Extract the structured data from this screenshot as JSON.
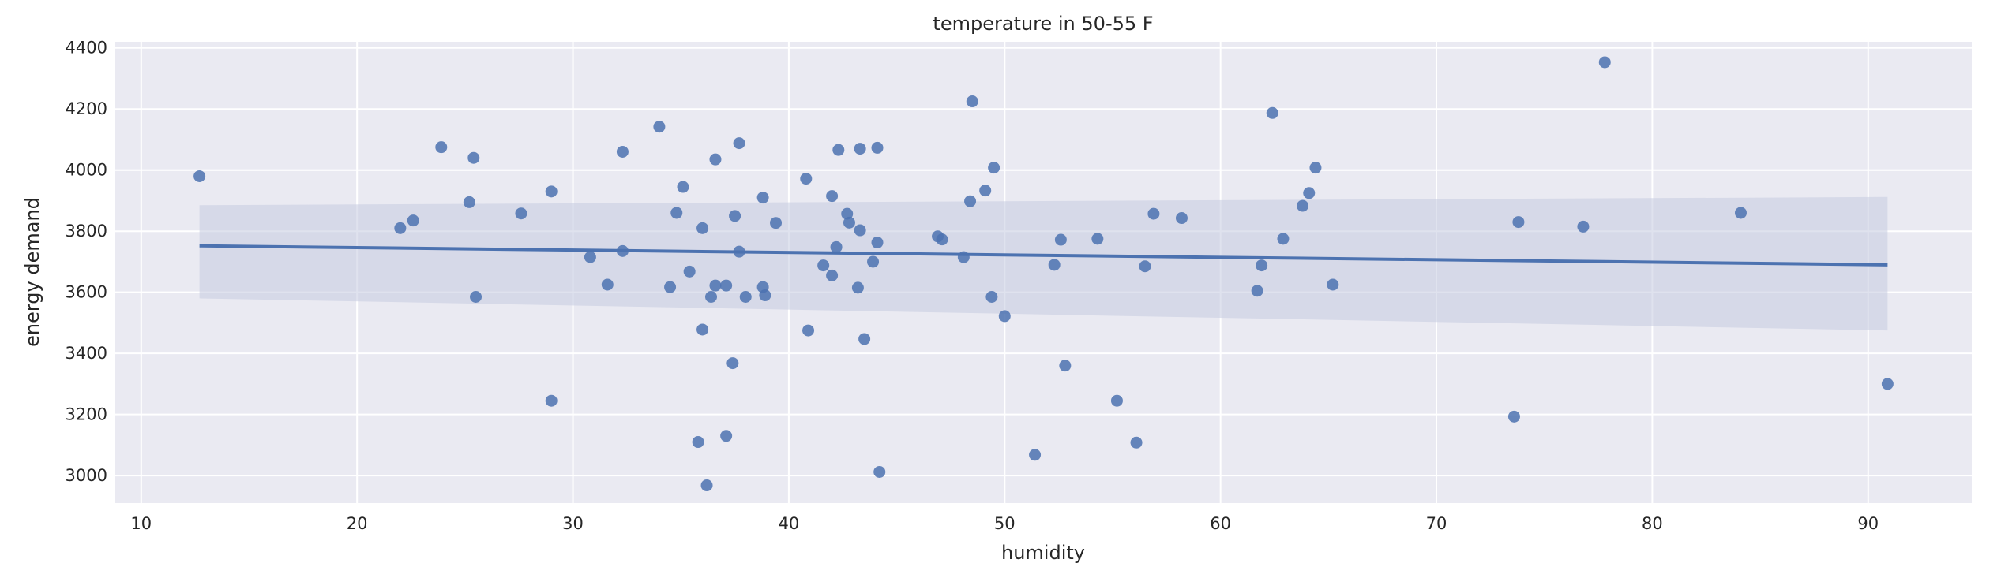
{
  "chart_data": {
    "type": "scatter",
    "title": "temperature in 50-55 F",
    "xlabel": "humidity",
    "ylabel": "energy demand",
    "xlim": [
      8.8,
      94.8
    ],
    "ylim": [
      2910,
      4420
    ],
    "xticks": [
      10,
      20,
      30,
      40,
      50,
      60,
      70,
      80,
      90
    ],
    "yticks": [
      3000,
      3200,
      3400,
      3600,
      3800,
      4000,
      4200,
      4400
    ],
    "grid": true,
    "colors": {
      "background": "#eaeaf2",
      "grid": "#ffffff",
      "point": "#4c72b0",
      "line": "#4c72b0",
      "band": "#c4cbe0"
    },
    "points": [
      [
        12.7,
        3980
      ],
      [
        22.0,
        3810
      ],
      [
        22.6,
        3835
      ],
      [
        23.9,
        4075
      ],
      [
        25.2,
        3895
      ],
      [
        25.4,
        4040
      ],
      [
        25.5,
        3585
      ],
      [
        27.6,
        3858
      ],
      [
        29.0,
        3930
      ],
      [
        29.0,
        3245
      ],
      [
        30.8,
        3715
      ],
      [
        31.6,
        3625
      ],
      [
        32.3,
        4060
      ],
      [
        32.3,
        3735
      ],
      [
        34.0,
        4142
      ],
      [
        34.5,
        3617
      ],
      [
        34.8,
        3860
      ],
      [
        35.1,
        3945
      ],
      [
        35.4,
        3668
      ],
      [
        35.8,
        3110
      ],
      [
        36.0,
        3810
      ],
      [
        36.0,
        3478
      ],
      [
        36.2,
        2968
      ],
      [
        36.4,
        3585
      ],
      [
        36.6,
        4035
      ],
      [
        36.6,
        3622
      ],
      [
        37.1,
        3130
      ],
      [
        37.1,
        3622
      ],
      [
        37.4,
        3368
      ],
      [
        37.5,
        3850
      ],
      [
        37.7,
        4088
      ],
      [
        37.7,
        3733
      ],
      [
        38.0,
        3585
      ],
      [
        38.8,
        3910
      ],
      [
        38.8,
        3617
      ],
      [
        38.9,
        3590
      ],
      [
        39.4,
        3827
      ],
      [
        40.8,
        3972
      ],
      [
        40.9,
        3475
      ],
      [
        41.6,
        3688
      ],
      [
        42.0,
        3915
      ],
      [
        42.0,
        3655
      ],
      [
        42.2,
        3748
      ],
      [
        42.3,
        4066
      ],
      [
        42.7,
        3857
      ],
      [
        42.8,
        3828
      ],
      [
        43.2,
        3615
      ],
      [
        43.3,
        3803
      ],
      [
        43.3,
        4070
      ],
      [
        43.5,
        3447
      ],
      [
        43.9,
        3700
      ],
      [
        44.1,
        3763
      ],
      [
        44.1,
        4073
      ],
      [
        44.2,
        3012
      ],
      [
        46.9,
        3783
      ],
      [
        47.1,
        3773
      ],
      [
        48.1,
        3715
      ],
      [
        48.4,
        3898
      ],
      [
        48.5,
        4225
      ],
      [
        49.1,
        3933
      ],
      [
        49.4,
        3585
      ],
      [
        49.5,
        4008
      ],
      [
        50.0,
        3522
      ],
      [
        51.4,
        3068
      ],
      [
        52.3,
        3690
      ],
      [
        52.6,
        3772
      ],
      [
        52.8,
        3360
      ],
      [
        54.3,
        3775
      ],
      [
        55.2,
        3245
      ],
      [
        56.1,
        3108
      ],
      [
        56.5,
        3685
      ],
      [
        56.9,
        3857
      ],
      [
        58.2,
        3843
      ],
      [
        61.7,
        3605
      ],
      [
        61.9,
        3688
      ],
      [
        62.4,
        4187
      ],
      [
        62.9,
        3775
      ],
      [
        63.8,
        3883
      ],
      [
        64.1,
        3925
      ],
      [
        64.4,
        4008
      ],
      [
        65.2,
        3625
      ],
      [
        73.6,
        3193
      ],
      [
        73.8,
        3830
      ],
      [
        76.8,
        3815
      ],
      [
        77.8,
        4353
      ],
      [
        84.1,
        3860
      ],
      [
        90.9,
        3300
      ]
    ],
    "regression": {
      "x": [
        12.7,
        90.9
      ],
      "y": [
        3752,
        3690
      ],
      "ci_lower": [
        3580,
        3475
      ],
      "ci_upper": [
        3885,
        3912
      ]
    }
  }
}
